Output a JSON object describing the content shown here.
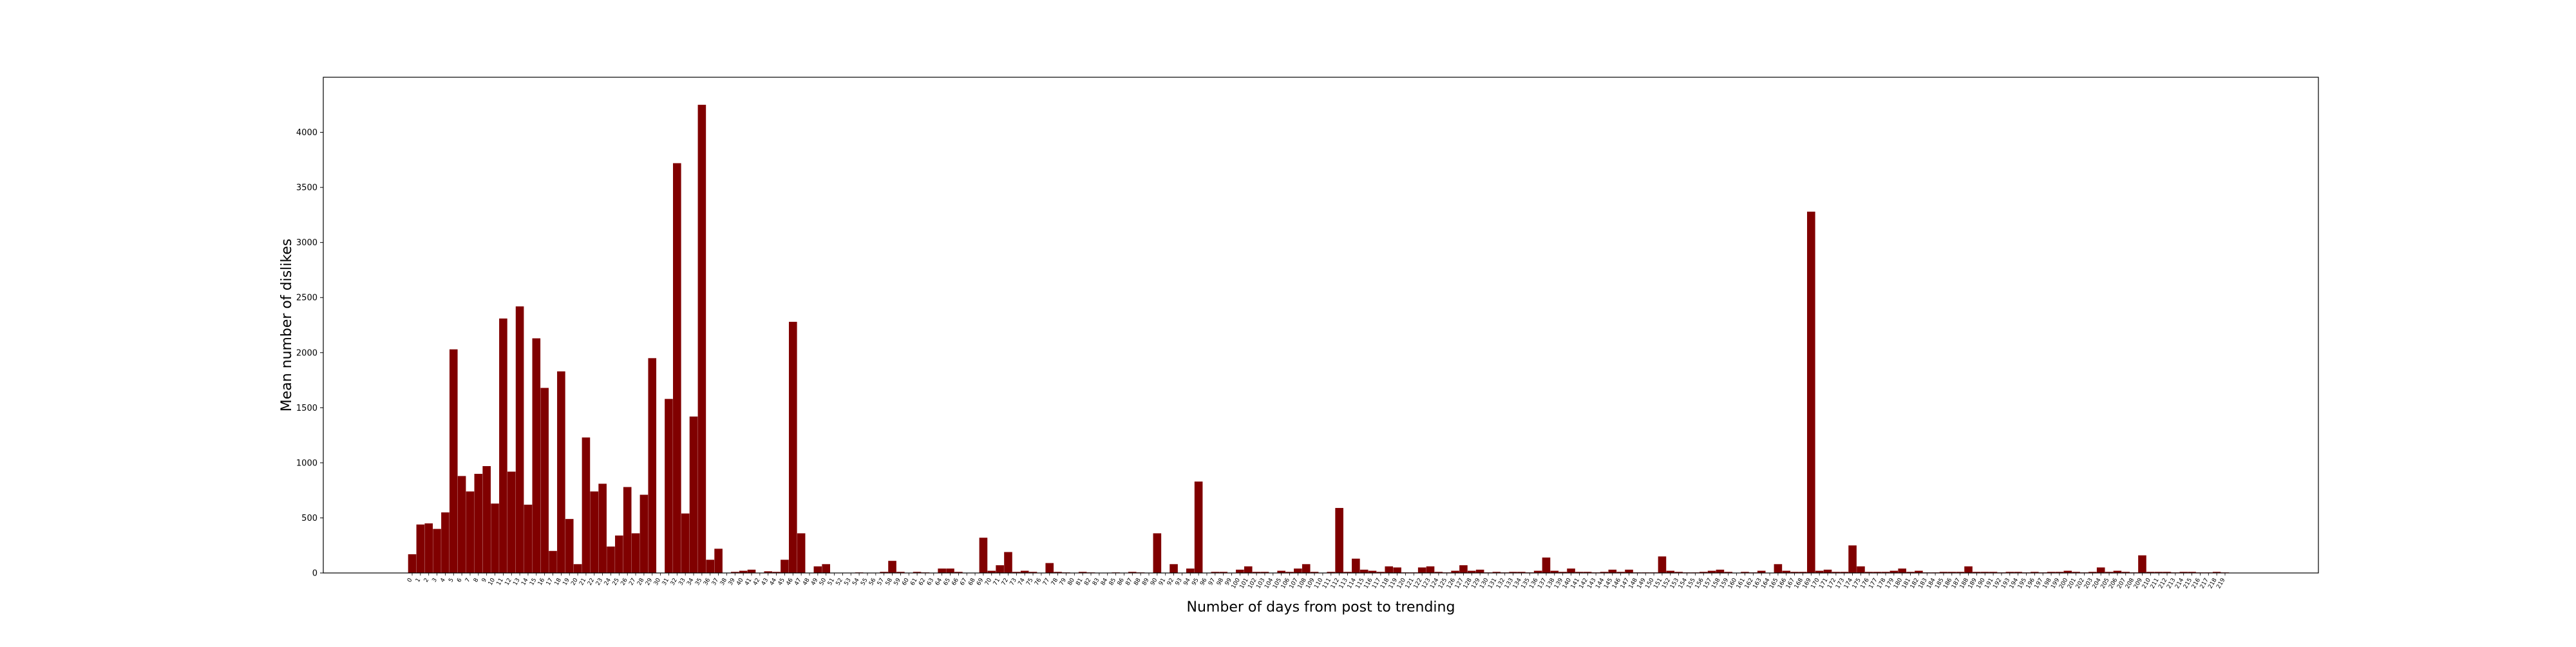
{
  "chart_data": {
    "type": "bar",
    "title": "",
    "xlabel": "Number of days from post to trending",
    "ylabel": "Mean number of dislikes",
    "ylim": [
      0,
      4500
    ],
    "yticks": [
      0,
      500,
      1000,
      1500,
      2000,
      2500,
      3000,
      3500,
      4000
    ],
    "grid": false,
    "bar_color": "#800000",
    "categories": [
      "0",
      "1",
      "2",
      "3",
      "4",
      "5",
      "6",
      "7",
      "8",
      "9",
      "10",
      "11",
      "12",
      "13",
      "14",
      "15",
      "16",
      "17",
      "18",
      "19",
      "20",
      "21",
      "22",
      "23",
      "24",
      "25",
      "26",
      "27",
      "28",
      "29",
      "30",
      "31",
      "32",
      "33",
      "34",
      "35",
      "36",
      "37",
      "38",
      "39",
      "40",
      "41",
      "42",
      "43",
      "44",
      "45",
      "46",
      "47",
      "48",
      "49",
      "50",
      "51",
      "52",
      "53",
      "54",
      "55",
      "56",
      "57",
      "58",
      "59",
      "60",
      "61",
      "62",
      "63",
      "64",
      "65",
      "66",
      "67",
      "68",
      "69",
      "70",
      "71",
      "72",
      "73",
      "74",
      "75",
      "76",
      "77",
      "78",
      "79",
      "80",
      "81",
      "82",
      "83",
      "84",
      "85",
      "86",
      "87",
      "88",
      "89",
      "90",
      "91",
      "92",
      "93",
      "94",
      "95",
      "96",
      "97",
      "98",
      "99",
      "100",
      "101",
      "102",
      "103",
      "104",
      "105",
      "106",
      "107",
      "108",
      "109",
      "110",
      "111",
      "112",
      "113",
      "114",
      "115",
      "116",
      "117",
      "118",
      "119",
      "120",
      "121",
      "122",
      "123",
      "124",
      "125",
      "126",
      "127",
      "128",
      "129",
      "130",
      "131",
      "132",
      "133",
      "134",
      "135",
      "136",
      "137",
      "138",
      "139",
      "140",
      "141",
      "142",
      "143",
      "144",
      "145",
      "146",
      "147",
      "148",
      "149",
      "150",
      "151",
      "152",
      "153",
      "154",
      "155",
      "156",
      "157",
      "158",
      "159",
      "160",
      "161",
      "162",
      "163",
      "164",
      "165",
      "166",
      "167",
      "168",
      "169",
      "170",
      "171",
      "172",
      "173",
      "174",
      "175",
      "176",
      "177",
      "178",
      "179",
      "180",
      "181",
      "182",
      "183",
      "184",
      "185",
      "186",
      "187",
      "188",
      "189",
      "190",
      "191",
      "192",
      "193",
      "194",
      "195",
      "196",
      "197",
      "198",
      "199",
      "200",
      "201",
      "202",
      "203",
      "204",
      "205",
      "206",
      "207",
      "208",
      "209",
      "210",
      "211",
      "212",
      "213",
      "214",
      "215",
      "216",
      "217",
      "218",
      "219"
    ],
    "values": [
      170,
      440,
      450,
      400,
      550,
      2030,
      880,
      740,
      900,
      970,
      630,
      2310,
      920,
      2420,
      620,
      2130,
      1680,
      200,
      1830,
      490,
      80,
      1230,
      740,
      810,
      240,
      340,
      780,
      360,
      710,
      1950,
      0,
      1580,
      3720,
      540,
      1420,
      4250,
      120,
      220,
      0,
      10,
      20,
      30,
      0,
      15,
      10,
      120,
      2280,
      360,
      0,
      60,
      80,
      0,
      0,
      0,
      5,
      0,
      0,
      10,
      110,
      10,
      0,
      10,
      5,
      0,
      40,
      40,
      10,
      0,
      0,
      320,
      20,
      70,
      190,
      10,
      20,
      10,
      0,
      90,
      10,
      5,
      0,
      10,
      5,
      0,
      0,
      5,
      0,
      10,
      5,
      0,
      360,
      0,
      80,
      0,
      40,
      830,
      0,
      10,
      10,
      0,
      30,
      60,
      10,
      10,
      0,
      20,
      10,
      40,
      80,
      10,
      0,
      10,
      590,
      10,
      130,
      30,
      20,
      10,
      60,
      50,
      5,
      5,
      50,
      60,
      10,
      5,
      20,
      70,
      20,
      30,
      5,
      10,
      5,
      10,
      10,
      5,
      20,
      140,
      20,
      10,
      40,
      10,
      10,
      5,
      10,
      30,
      10,
      30,
      5,
      5,
      5,
      150,
      20,
      10,
      5,
      5,
      10,
      20,
      30,
      10,
      0,
      10,
      5,
      20,
      0,
      80,
      20,
      10,
      10,
      3280,
      20,
      30,
      10,
      10,
      250,
      60,
      10,
      10,
      10,
      20,
      40,
      10,
      20,
      5,
      5,
      10,
      10,
      10,
      60,
      10,
      10,
      10,
      5,
      10,
      10,
      5,
      10,
      5,
      10,
      10,
      20,
      10,
      5,
      10,
      50,
      10,
      20,
      10,
      5,
      160,
      10,
      10,
      10,
      5,
      10,
      10,
      5,
      5,
      10,
      5
    ]
  }
}
